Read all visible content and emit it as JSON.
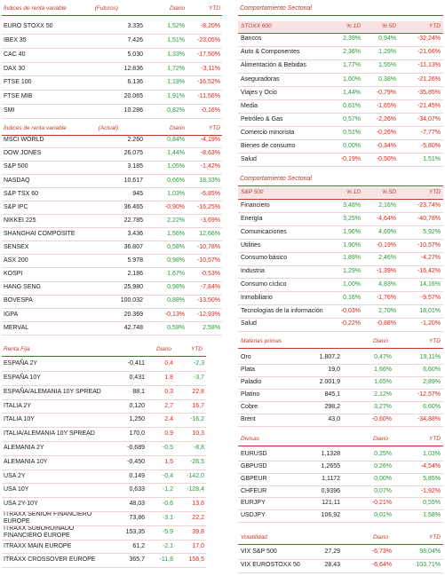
{
  "colors": {
    "positive": "#2a9a3a",
    "negative": "#e2231a"
  },
  "left": [
    {
      "header": [
        "Índices de renta variable",
        "(Futuros)",
        "Diario",
        "YTD"
      ],
      "rows": [
        [
          "EURO STOXX 50",
          "3.335",
          "1,52%",
          "-8,20%"
        ],
        [
          "IBEX 35",
          "7.426",
          "1,51%",
          "-23,05%"
        ],
        [
          "CAC 40",
          "5.030",
          "1,33%",
          "-17,50%"
        ],
        [
          "DAX 30",
          "12.836",
          "1,72%",
          "-3,11%"
        ],
        [
          "FTSE 100",
          "6.136",
          "1,19%",
          "-16,52%"
        ],
        [
          "FTSE MIB",
          "20.065",
          "1,91%",
          "-11,56%"
        ],
        [
          "SMI",
          "10.286",
          "0,82%",
          "-0,16%"
        ]
      ]
    },
    {
      "header": [
        "Índices de renta variable",
        "(Actual)",
        "Diario",
        "YTD"
      ],
      "rows": [
        [
          "MSCI WORLD",
          "2.260",
          "0,84%",
          "-4,19%"
        ],
        [
          "DOW JONES",
          "26.075",
          "1,44%",
          "-8,63%"
        ],
        [
          "S&P 500",
          "3.185",
          "1,05%",
          "-1,42%"
        ],
        [
          "NASDAQ",
          "10.617",
          "0,66%",
          "18,33%"
        ],
        [
          "S&P TSX 60",
          "945",
          "1,03%",
          "-6,85%"
        ],
        [
          "S&P IPC",
          "36.465",
          "-0,90%",
          "-16,25%"
        ],
        [
          "NIKKEI 225",
          "22.785",
          "2,22%",
          "-3,69%"
        ],
        [
          "SHANGHAI COMPOSITE",
          "3.436",
          "1,56%",
          "12,66%"
        ],
        [
          "SENSEX",
          "36.807",
          "0,58%",
          "-10,78%"
        ],
        [
          "ASX 200",
          "5.978",
          "0,98%",
          "-10,57%"
        ],
        [
          "KOSPI",
          "2.186",
          "1,67%",
          "-0,53%"
        ],
        [
          "HANG SENG",
          "25.980",
          "0,98%",
          "-7,84%"
        ],
        [
          "BOVESPA",
          "100.032",
          "0,88%",
          "-13,50%"
        ],
        [
          "IGPA",
          "20.369",
          "-0,13%",
          "-12,93%"
        ],
        [
          "MERVAL",
          "42.748",
          "0,59%",
          "2,58%"
        ]
      ]
    },
    {
      "header": [
        "Renta Fija",
        "Diario",
        "YTD"
      ],
      "inverted_colors": true,
      "rows": [
        [
          "ESPAÑA 2Y",
          "-0,411",
          "0,4",
          "-2,3"
        ],
        [
          "ESPAÑA 10Y",
          "0,431",
          "1,8",
          "-3,7"
        ],
        [
          "ESPAÑA/ALEMANIA 10Y SPREAD",
          "88,1",
          "0,3",
          "22,8"
        ],
        [
          "ITALIA 2Y",
          "0,120",
          "2,7",
          "16,7"
        ],
        [
          "ITALIA 10Y",
          "1,250",
          "2,4",
          "-16,2"
        ],
        [
          "ITALIA/ALEMANIA 10Y SPREAD",
          "170,0",
          "0,9",
          "10,3"
        ],
        [
          "ALEMANIA 2Y",
          "-0,689",
          "-0,5",
          "-8,8"
        ],
        [
          "ALEMANIA 10Y",
          "-0,450",
          "1,5",
          "-26,5"
        ],
        [
          "USA 2Y",
          "0,149",
          "-0,4",
          "-142,0"
        ],
        [
          "USA 10Y",
          "0,633",
          "-1,2",
          "-128,4"
        ],
        [
          "USA 2Y-10Y",
          "48,03",
          "-0,6",
          "13,6"
        ],
        [
          "ITRAXX SENIOR FINANCIERO EUROPE",
          "73,86",
          "-3,1",
          "22,2"
        ],
        [
          "ITRAXX SUBORDINADO FINANCIERO EUROPE",
          "153,35",
          "-5,9",
          "39,8"
        ],
        [
          "ITRAXX MAIN EUROPE",
          "61,2",
          "-2,1",
          "17,0"
        ],
        [
          "ITRAXX CROSSOVER EUROPE",
          "365,7",
          "-11,8",
          "158,5"
        ]
      ]
    }
  ],
  "right": [
    {
      "title": "Comportamiento Sectorial",
      "header": [
        "STOXX 600",
        "% 1D",
        "% 5D",
        "YTD"
      ],
      "rows": [
        [
          "Bancos",
          "2,39%",
          "0,94%",
          "-32,24%"
        ],
        [
          "Auto & Componentes",
          "2,36%",
          "1,29%",
          "-21,66%"
        ],
        [
          "Alimentación & Bebidas",
          "1,77%",
          "1,55%",
          "-11,13%"
        ],
        [
          "Aseguradoras",
          "1,60%",
          "0,38%",
          "-21,26%"
        ],
        [
          "Viajes y Ocio",
          "1,44%",
          "-0,79%",
          "-35,85%"
        ],
        [
          "Media",
          "0,61%",
          "-1,65%",
          "-21,45%"
        ],
        [
          "Petróleo & Gas",
          "0,57%",
          "-2,26%",
          "-34,07%"
        ],
        [
          "Comercio minorista",
          "0,51%",
          "-0,26%",
          "-7,77%"
        ],
        [
          "Bienes de consumo",
          "0,00%",
          "-0,34%",
          "-5,80%"
        ],
        [
          "Salud",
          "-0,19%",
          "-0,50%",
          "1,51%"
        ]
      ]
    },
    {
      "title": "Comportamiento Sectorial",
      "header": [
        "S&P 500",
        "% 1D",
        "% 5D",
        "YTD"
      ],
      "rows": [
        [
          "Financiero",
          "3,48%",
          "2,16%",
          "-23,74%"
        ],
        [
          "Energía",
          "3,25%",
          "-4,64%",
          "-40,78%"
        ],
        [
          "Comunicaciones",
          "1,96%",
          "4,69%",
          "5,92%"
        ],
        [
          "Utilities",
          "1,90%",
          "-0,19%",
          "-10,57%"
        ],
        [
          "Consumo básico",
          "1,89%",
          "2,46%",
          "-4,27%"
        ],
        [
          "Industria",
          "1,29%",
          "-1,39%",
          "-16,42%"
        ],
        [
          "Consumo cíclico",
          "1,00%",
          "4,83%",
          "14,16%"
        ],
        [
          "Inmobiliario",
          "0,16%",
          "-1,76%",
          "-9,57%"
        ],
        [
          "Tecnologías de la información",
          "-0,03%",
          "2,70%",
          "18,01%"
        ],
        [
          "Salud",
          "-0,22%",
          "-0,88%",
          "-1,20%"
        ]
      ]
    },
    {
      "header": [
        "Materias primas",
        "Diario",
        "YTD"
      ],
      "rows": [
        [
          "Oro",
          "1.807,2",
          "0,47%",
          "19,11%"
        ],
        [
          "Plata",
          "19,0",
          "1,66%",
          "6,60%"
        ],
        [
          "Paladio",
          "2.001,9",
          "1,65%",
          "2,89%"
        ],
        [
          "Platino",
          "845,1",
          "2,12%",
          "-12,57%"
        ],
        [
          "Cobre",
          "298,2",
          "3,27%",
          "6,60%"
        ],
        [
          "Brent",
          "43,0",
          "-0,60%",
          "-34,88%"
        ]
      ]
    },
    {
      "header": [
        "Divisas",
        "Diario",
        "YTD"
      ],
      "rows": [
        [
          "EURUSD",
          "1,1328",
          "0,25%",
          "1,03%"
        ],
        [
          "GBPUSD",
          "1,2655",
          "0,26%",
          "-4,54%"
        ],
        [
          "GBPEUR",
          "1,1172",
          "0,00%",
          "5,85%"
        ],
        [
          "CHFEUR",
          "0,9396",
          "0,07%",
          "-1,92%"
        ],
        [
          "EURJPY",
          "121,11",
          "-0,21%",
          "0,55%"
        ],
        [
          "USDJPY",
          "106,92",
          "0,01%",
          "1,58%"
        ]
      ]
    },
    {
      "header": [
        "Volatilidad",
        "Diario",
        "YTD"
      ],
      "rows": [
        [
          "VIX S&P 500",
          "27,29",
          "-6,73%",
          "98,04%"
        ],
        [
          "VIX EUROSTOXX 50",
          "28,43",
          "-6,64%",
          "103,71%"
        ]
      ]
    }
  ]
}
